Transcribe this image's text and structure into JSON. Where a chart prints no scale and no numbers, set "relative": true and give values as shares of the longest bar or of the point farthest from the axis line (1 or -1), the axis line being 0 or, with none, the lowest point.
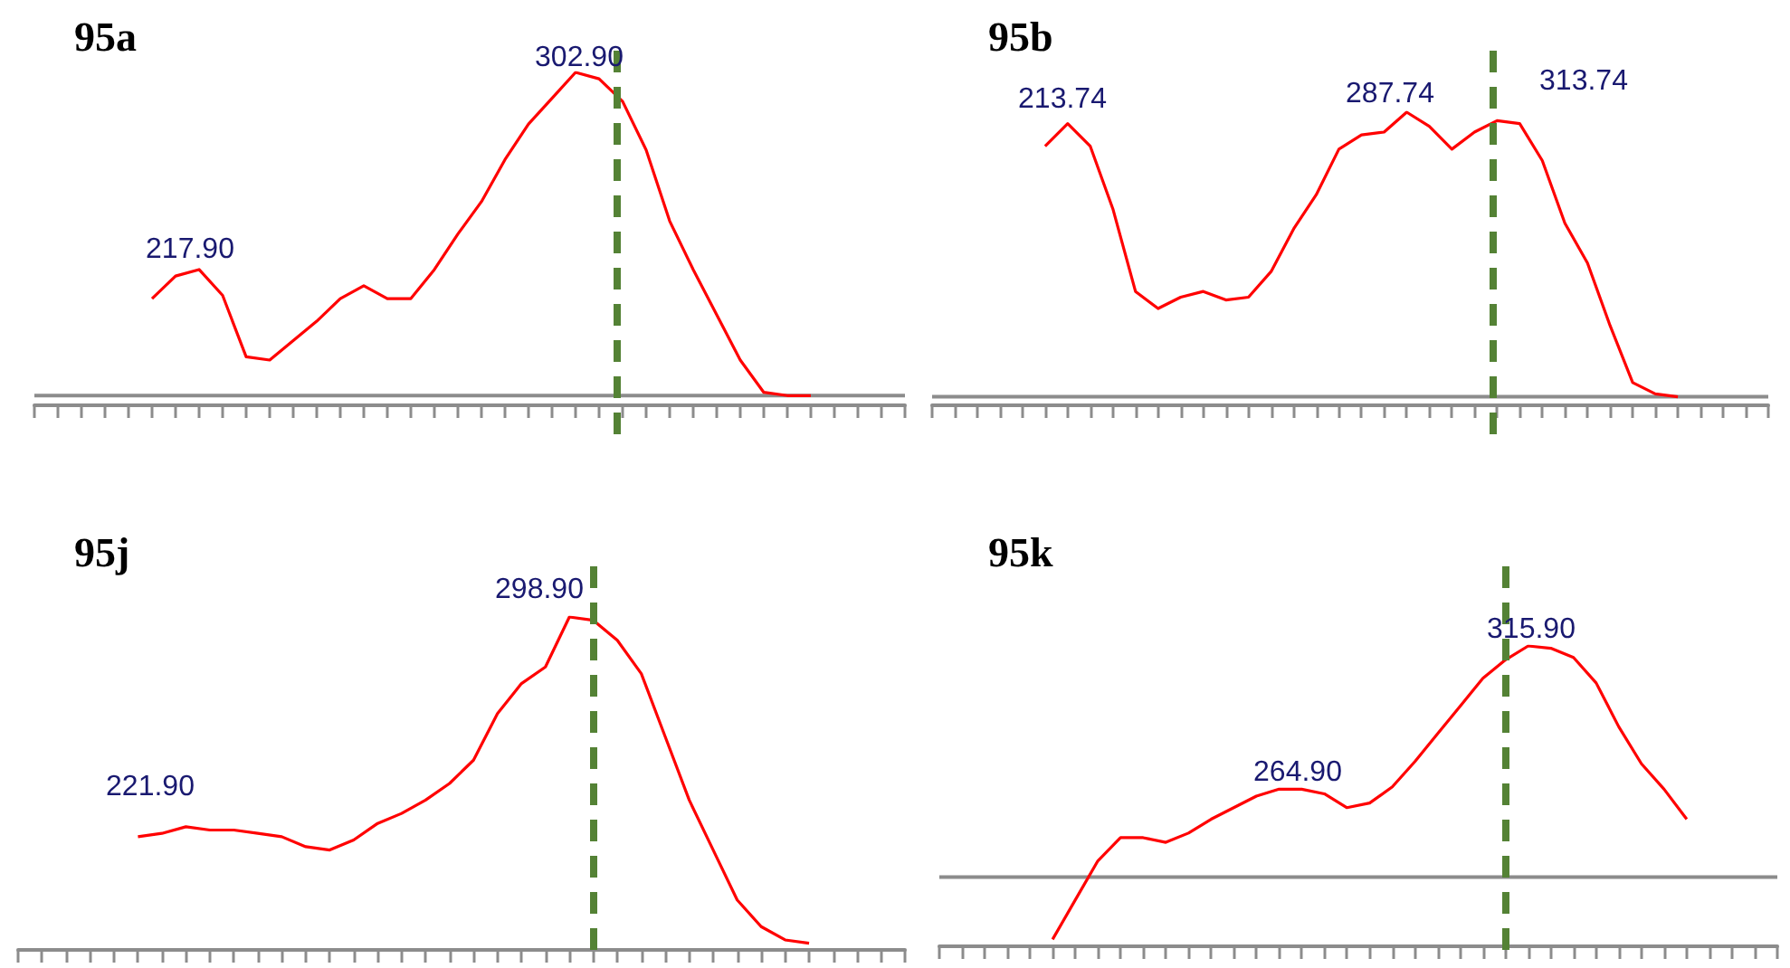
{
  "chart_data": [
    {
      "type": "line",
      "title": "95a",
      "relative": true,
      "marker": "none",
      "categories": [
        null,
        null,
        null,
        null,
        null,
        null,
        null,
        null,
        null,
        null,
        null,
        null,
        null,
        null,
        null,
        null,
        null,
        null,
        null,
        null,
        null,
        null,
        null,
        null,
        null,
        null,
        null,
        null,
        null,
        null,
        null,
        null,
        null,
        null,
        null,
        null,
        null,
        null
      ],
      "series": [
        {
          "color": "#ff0000",
          "values": [
            null,
            null,
            null,
            null,
            null,
            0.3,
            0.37,
            0.39,
            0.31,
            0.12,
            0.11,
            0.17,
            0.23,
            0.3,
            0.34,
            0.3,
            0.3,
            0.39,
            0.5,
            0.6,
            0.73,
            0.84,
            0.92,
            1.0,
            0.98,
            0.91,
            0.76,
            0.54,
            0.39,
            0.25,
            0.11,
            0.01,
            0,
            0,
            null,
            null,
            null,
            null
          ]
        }
      ],
      "annotations": [
        "217.90",
        "302.90"
      ],
      "ref_lines": [
        {
          "axis": "x",
          "color": "#548235",
          "line_style": "dashed"
        },
        {
          "axis": "y",
          "value": 0,
          "color": "#8c8c8c"
        }
      ]
    },
    {
      "type": "line",
      "title": "95b",
      "relative": true,
      "marker": "none",
      "categories": [
        null,
        null,
        null,
        null,
        null,
        null,
        null,
        null,
        null,
        null,
        null,
        null,
        null,
        null,
        null,
        null,
        null,
        null,
        null,
        null,
        null,
        null,
        null,
        null,
        null,
        null,
        null,
        null,
        null,
        null,
        null,
        null,
        null,
        null,
        null,
        null,
        null,
        null
      ],
      "series": [
        {
          "color": "#ff0000",
          "values": [
            null,
            null,
            null,
            null,
            null,
            0.88,
            0.96,
            0.88,
            0.66,
            0.37,
            0.31,
            0.35,
            0.37,
            0.34,
            0.35,
            0.44,
            0.59,
            0.71,
            0.87,
            0.92,
            0.93,
            1.0,
            0.95,
            0.87,
            0.93,
            0.97,
            0.96,
            0.83,
            0.61,
            0.47,
            0.25,
            0.05,
            0.01,
            0,
            null,
            null,
            null,
            null
          ]
        }
      ],
      "annotations": [
        "213.74",
        "287.74",
        "313.74"
      ],
      "ref_lines": [
        {
          "axis": "x",
          "color": "#548235",
          "line_style": "dashed"
        },
        {
          "axis": "y",
          "value": 0,
          "color": "#8c8c8c"
        }
      ]
    },
    {
      "type": "line",
      "title": "95j",
      "relative": true,
      "marker": "none",
      "categories": [
        null,
        null,
        null,
        null,
        null,
        null,
        null,
        null,
        null,
        null,
        null,
        null,
        null,
        null,
        null,
        null,
        null,
        null,
        null,
        null,
        null,
        null,
        null,
        null,
        null,
        null,
        null,
        null,
        null,
        null,
        null,
        null,
        null,
        null,
        null,
        null,
        null,
        null
      ],
      "series": [
        {
          "color": "#ff0000",
          "values": [
            null,
            null,
            null,
            null,
            null,
            0.34,
            0.35,
            0.37,
            0.36,
            0.36,
            0.35,
            0.34,
            0.31,
            0.3,
            0.33,
            0.38,
            0.41,
            0.45,
            0.5,
            0.57,
            0.71,
            0.8,
            0.85,
            1.0,
            0.99,
            0.93,
            0.83,
            0.64,
            0.45,
            0.3,
            0.15,
            0.07,
            0.03,
            0.02,
            null,
            null,
            null,
            null
          ]
        }
      ],
      "annotations": [
        "221.90",
        "298.90"
      ],
      "ref_lines": [
        {
          "axis": "x",
          "color": "#548235",
          "line_style": "dashed"
        }
      ]
    },
    {
      "type": "line",
      "title": "95k",
      "relative": true,
      "marker": "none",
      "categories": [
        null,
        null,
        null,
        null,
        null,
        null,
        null,
        null,
        null,
        null,
        null,
        null,
        null,
        null,
        null,
        null,
        null,
        null,
        null,
        null,
        null,
        null,
        null,
        null,
        null,
        null,
        null,
        null,
        null,
        null,
        null,
        null,
        null,
        null,
        null,
        null,
        null,
        null
      ],
      "series": [
        {
          "color": "#ff0000",
          "values": [
            null,
            null,
            null,
            null,
            null,
            -0.27,
            -0.1,
            0.07,
            0.17,
            0.17,
            0.15,
            0.19,
            0.25,
            0.3,
            0.35,
            0.38,
            0.38,
            0.36,
            0.3,
            0.32,
            0.39,
            0.5,
            0.62,
            0.74,
            0.86,
            0.94,
            1.0,
            0.99,
            0.95,
            0.84,
            0.65,
            0.49,
            0.38,
            0.25,
            null,
            null,
            null,
            null
          ]
        }
      ],
      "annotations": [
        "264.90",
        "315.90"
      ],
      "ref_lines": [
        {
          "axis": "x",
          "color": "#548235",
          "line_style": "dashed"
        },
        {
          "axis": "y",
          "value": 0,
          "color": "#8c8c8c"
        }
      ]
    }
  ]
}
